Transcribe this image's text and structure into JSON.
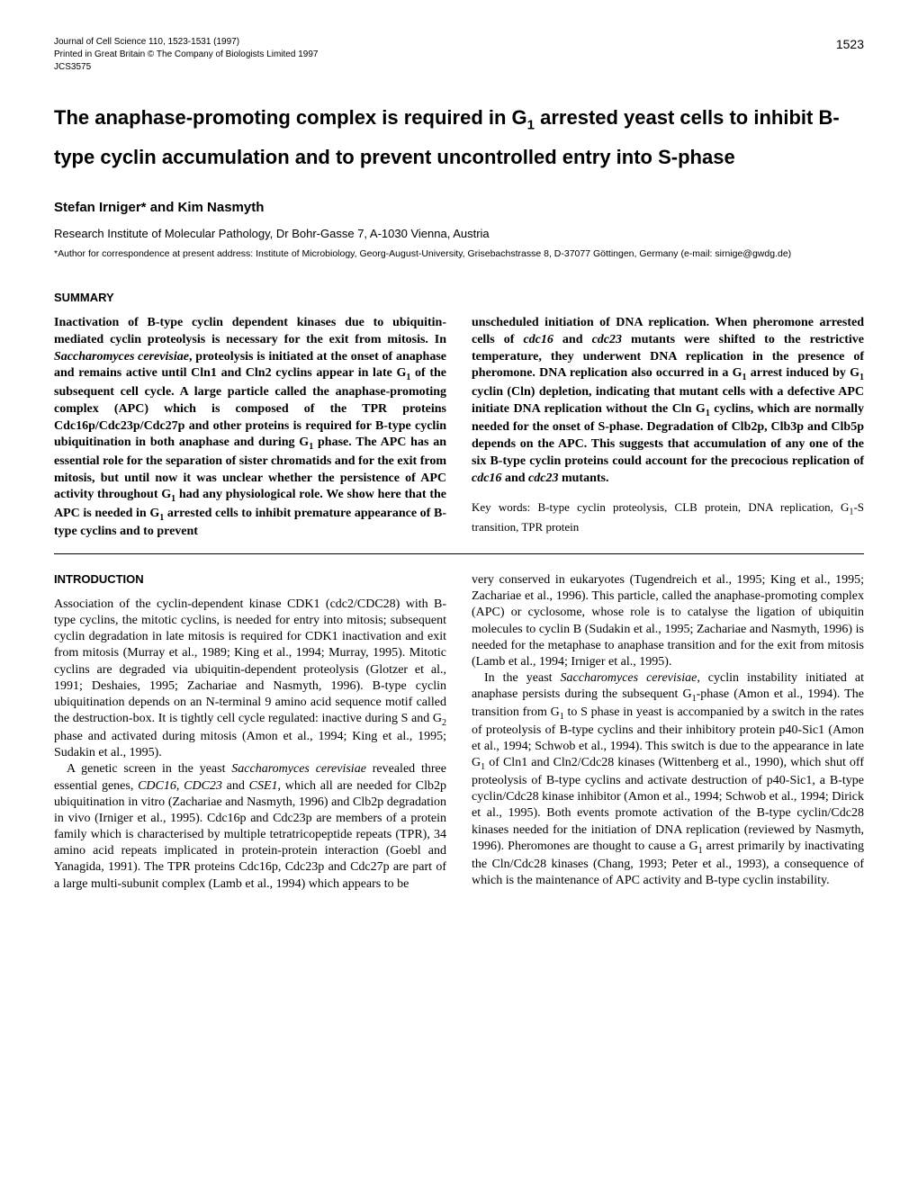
{
  "page_number": "1523",
  "journal_header": {
    "line1": "Journal of Cell Science 110, 1523-1531 (1997)",
    "line2": "Printed in Great Britain © The Company of Biologists Limited 1997",
    "line3": "JCS3575"
  },
  "title_html": "The anaphase-promoting complex is required in G<sub>1</sub> arrested yeast cells to inhibit B-type cyclin accumulation and to prevent uncontrolled entry into S-phase",
  "authors": "Stefan Irniger* and Kim Nasmyth",
  "affiliation": "Research Institute of Molecular Pathology, Dr Bohr-Gasse 7, A-1030 Vienna, Austria",
  "correspondence": "*Author for correspondence at present address: Institute of Microbiology, Georg-August-University, Grisebachstrasse 8, D-37077 Göttingen, Germany (e-mail: sirnige@gwdg.de)",
  "summary_heading": "SUMMARY",
  "summary_left_html": "Inactivation of B-type cyclin dependent kinases due to ubiquitin-mediated cyclin proteolysis is necessary for the exit from mitosis. In <span class='italic'>Saccharomyces cerevisiae</span>, proteolysis is initiated at the onset of anaphase and remains active until Cln1 and Cln2 cyclins appear in late G<sub>1</sub> of the subsequent cell cycle. A large particle called the anaphase-promoting complex (APC) which is composed of the TPR proteins Cdc16p/Cdc23p/Cdc27p and other proteins is required for B-type cyclin ubiquitination in both anaphase and during G<sub>1</sub> phase. The APC has an essential role for the separation of sister chromatids and for the exit from mitosis, but until now it was unclear whether the persistence of APC activity throughout G<sub>1</sub> had any physiological role. We show here that the APC is needed in G<sub>1</sub> arrested cells to inhibit premature appearance of B-type cyclins and to prevent",
  "summary_right_html": "unscheduled initiation of DNA replication. When pheromone arrested cells of <span class='italic'>cdc16</span> and <span class='italic'>cdc23</span> mutants were shifted to the restrictive temperature, they underwent DNA replication in the presence of pheromone. DNA replication also occurred in a G<sub>1</sub> arrest induced by G<sub>1</sub> cyclin (Cln) depletion, indicating that mutant cells with a defective APC initiate DNA replication without the Cln G<sub>1</sub> cyclins, which are normally needed for the onset of S-phase. Degradation of Clb2p, Clb3p and Clb5p depends on the APC. This suggests that accumulation of any one of the six B-type cyclin proteins could account for the precocious replication of <span class='italic'>cdc16</span> and <span class='italic'>cdc23</span> mutants.",
  "keywords_html": "Key words: B-type cyclin proteolysis, CLB protein, DNA replication, G<sub>1</sub>-S transition, TPR protein",
  "intro_heading": "INTRODUCTION",
  "intro_left_p1_html": "Association of the cyclin-dependent kinase CDK1 (cdc2/CDC28) with B-type cyclins, the mitotic cyclins, is needed for entry into mitosis; subsequent cyclin degradation in late mitosis is required for CDK1 inactivation and exit from mitosis (Murray et al., 1989; King et al., 1994; Murray, 1995). Mitotic cyclins are degraded via ubiquitin-dependent proteolysis (Glotzer et al., 1991; Deshaies, 1995; Zachariae and Nasmyth, 1996). B-type cyclin ubiquitination depends on an N-terminal 9 amino acid sequence motif called the destruction-box. It is tightly cell cycle regulated: inactive during S and G<sub>2</sub> phase and activated during mitosis (Amon et al., 1994; King et al., 1995; Sudakin et al., 1995).",
  "intro_left_p2_html": "A genetic screen in the yeast <span class='italic'>Saccharomyces cerevisiae</span> revealed three essential genes, <span class='italic'>CDC16</span>, <span class='italic'>CDC23</span> and <span class='italic'>CSE1</span>, which all are needed for Clb2p ubiquitination in vitro (Zachariae and Nasmyth, 1996) and Clb2p degradation in vivo (Irniger et al., 1995). Cdc16p and Cdc23p are members of a protein family which is characterised by multiple tetratricopeptide repeats (TPR), 34 amino acid repeats implicated in protein-protein interaction (Goebl and Yanagida, 1991). The TPR proteins Cdc16p, Cdc23p and Cdc27p are part of a large multi-subunit complex (Lamb et al., 1994) which appears to be",
  "intro_right_p1_html": "very conserved in eukaryotes (Tugendreich et al., 1995; King et al., 1995; Zachariae et al., 1996). This particle, called the anaphase-promoting complex (APC) or cyclosome, whose role is to catalyse the ligation of ubiquitin molecules to cyclin B (Sudakin et al., 1995; Zachariae and Nasmyth, 1996) is needed for the metaphase to anaphase transition and for the exit from mitosis (Lamb et al., 1994; Irniger et al., 1995).",
  "intro_right_p2_html": "In the yeast <span class='italic'>Saccharomyces cerevisiae</span>, cyclin instability initiated at anaphase persists during the subsequent G<sub>1</sub>-phase (Amon et al., 1994). The transition from G<sub>1</sub> to S phase in yeast is accompanied by a switch in the rates of proteolysis of B-type cyclins and their inhibitory protein p40-Sic1 (Amon et al., 1994; Schwob et al., 1994). This switch is due to the appearance in late G<sub>1</sub> of Cln1 and Cln2/Cdc28 kinases (Wittenberg et al., 1990), which shut off proteolysis of B-type cyclins and activate destruction of p40-Sic1, a B-type cyclin/Cdc28 kinase inhibitor (Amon et al., 1994; Schwob et al., 1994; Dirick et al., 1995). Both events promote activation of the B-type cyclin/Cdc28 kinases needed for the initiation of DNA replication (reviewed by Nasmyth, 1996). Pheromones are thought to cause a G<sub>1</sub> arrest primarily by inactivating the Cln/Cdc28 kinases (Chang, 1993; Peter et al., 1993), a consequence of which is the maintenance of APC activity and B-type cyclin instability."
}
